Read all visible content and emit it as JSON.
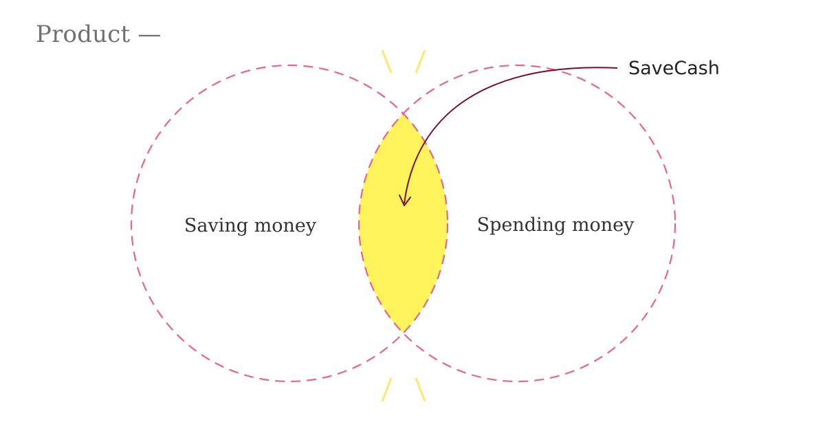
{
  "header": {
    "title": "Product —"
  },
  "venn": {
    "left_label": "Saving money",
    "right_label": "Spending money",
    "callout_label": "SaveCash"
  },
  "colors": {
    "circle_stroke": "#ee6384",
    "overlap_fill": "#fff45b",
    "arrow": "#7d0a28",
    "accent_lines": "#ffe76d",
    "header_text": "#707070"
  }
}
